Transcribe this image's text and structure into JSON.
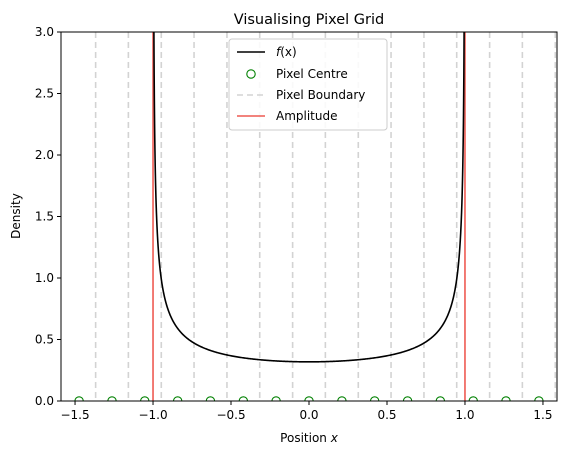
{
  "chart_data": {
    "type": "line",
    "title": "Visualising Pixel Grid",
    "xlabel_prefix": "Position ",
    "xlabel_var": "x",
    "ylabel": "Density",
    "xlim": [
      -1.59,
      1.59
    ],
    "ylim": [
      0,
      3.0
    ],
    "x_ticks": [
      -1.5,
      -1.0,
      -0.5,
      0.0,
      0.5,
      1.0,
      1.5
    ],
    "x_tick_labels": [
      "−1.5",
      "−1.0",
      "−0.5",
      "0.0",
      "0.5",
      "1.0",
      "1.5"
    ],
    "y_ticks": [
      0.0,
      0.5,
      1.0,
      1.5,
      2.0,
      2.5,
      3.0
    ],
    "y_tick_labels": [
      "0.0",
      "0.5",
      "1.0",
      "1.5",
      "2.0",
      "2.5",
      "3.0"
    ],
    "amplitude": 1.0,
    "pixel_centres": [
      -1.474,
      -1.263,
      -1.053,
      -0.842,
      -0.632,
      -0.421,
      -0.211,
      0.0,
      0.211,
      0.421,
      0.632,
      0.842,
      1.053,
      1.263,
      1.474
    ],
    "pixel_boundaries": [
      -1.368,
      -1.158,
      -0.947,
      -0.737,
      -0.526,
      -0.316,
      -0.105,
      0.105,
      0.316,
      0.526,
      0.737,
      0.947,
      1.158,
      1.368,
      1.579
    ],
    "legend_position": "upper center",
    "legend": {
      "fx_pre": "f",
      "fx_var": "(x)",
      "pixel_centre": "Pixel Centre",
      "pixel_boundary": "Pixel Boundary",
      "amplitude": "Amplitude"
    },
    "colors": {
      "curve": "#000000",
      "pixel_centre": "#008000",
      "pixel_boundary": "#d3d3d3",
      "amplitude": "#ee5a52"
    }
  }
}
